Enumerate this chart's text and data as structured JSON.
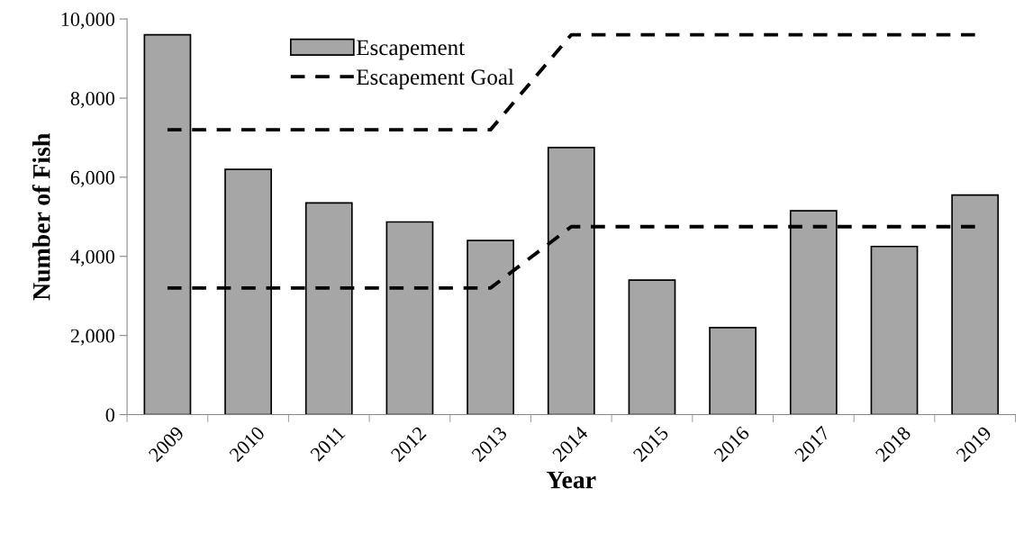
{
  "chart_data": {
    "type": "bar",
    "xlabel": "Year",
    "ylabel": "Number of Fish",
    "categories": [
      "2009",
      "2010",
      "2011",
      "2012",
      "2013",
      "2014",
      "2015",
      "2016",
      "2017",
      "2018",
      "2019"
    ],
    "series": [
      {
        "name": "Escapement",
        "color": "#a6a6a6",
        "values": [
          9600,
          6200,
          5350,
          4870,
          4400,
          6750,
          3400,
          2200,
          5150,
          4250,
          5550
        ]
      },
      {
        "name": "Escapement Goal",
        "type": "line",
        "color": "#000000",
        "line_style": "dashed",
        "values": [
          7200,
          7200,
          7200,
          7200,
          7200,
          9600,
          9600,
          9600,
          9600,
          9600,
          9600
        ]
      },
      {
        "type": "line",
        "color": "#000000",
        "line_style": "dashed",
        "values": [
          3200,
          3200,
          3200,
          3200,
          3200,
          4750,
          4750,
          4750,
          4750,
          4750,
          4750
        ]
      }
    ],
    "ylim": [
      0,
      10000
    ],
    "yticks": [
      {
        "value": 0,
        "label": "0"
      },
      {
        "value": 2000,
        "label": "2,000"
      },
      {
        "value": 4000,
        "label": "4,000"
      },
      {
        "value": 6000,
        "label": "6,000"
      },
      {
        "value": 8000,
        "label": "8,000"
      },
      {
        "value": 10000,
        "label": "10,000"
      }
    ],
    "grid": false,
    "legend": "top"
  }
}
